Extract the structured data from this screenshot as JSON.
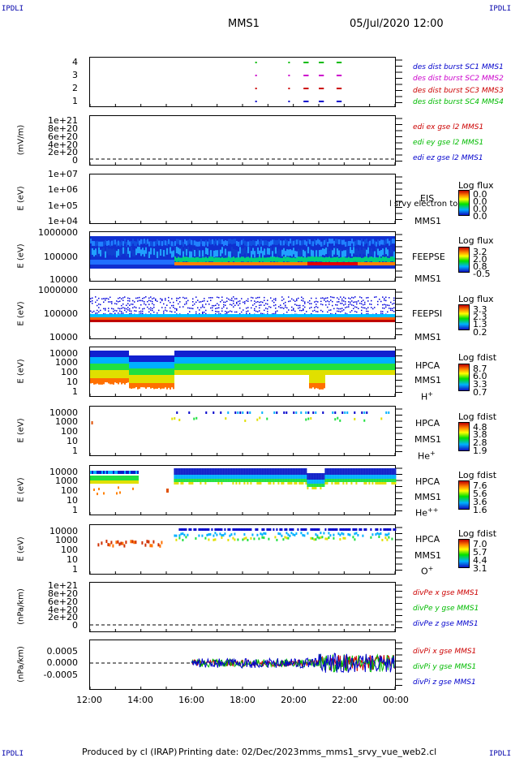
{
  "header": {
    "corner_label": "IPDLI",
    "spacecraft": "MMS1",
    "datetime": "05/Jul/2020 12:00"
  },
  "footer": {
    "produced_by": "Produced by cl (IRAP)",
    "printing_date": "Printing date: 02/Dec/2023",
    "filename": "mms_mms1_srvy_vue_web2.cl"
  },
  "x_axis": {
    "ticks": [
      "12:00",
      "14:00",
      "16:00",
      "18:00",
      "20:00",
      "22:00",
      "00:00"
    ]
  },
  "panels": {
    "burst": {
      "yticks": [
        "4",
        "3",
        "2",
        "1"
      ],
      "legend": [
        {
          "text": "des dist burst SC1 MMS1",
          "color": "#0000cc"
        },
        {
          "text": "des dist burst SC2 MMS2",
          "color": "#cc00cc"
        },
        {
          "text": "des dist burst SC3 MMS3",
          "color": "#cc0000"
        },
        {
          "text": "des dist burst SC4 MMS4",
          "color": "#00bb00"
        }
      ]
    },
    "efield": {
      "ylabel": "(mV/m)",
      "yticks": [
        "1e+21",
        "8e+20",
        "6e+20",
        "4e+20",
        "2e+20",
        "0"
      ],
      "legend": [
        {
          "text": "edi ex gse l2 MMS1",
          "color": "#cc0000"
        },
        {
          "text": "edi ey gse l2 MMS1",
          "color": "#00bb00"
        },
        {
          "text": "edi ez gse l2 MMS1",
          "color": "#0000cc"
        }
      ]
    },
    "eis": {
      "ylabel": "E (eV)",
      "yticks": [
        "1e+07",
        "1e+06",
        "1e+05",
        "1e+04"
      ],
      "instrument": "EIS",
      "spacecraft": "MMS1",
      "overlay": "l srvy electron to",
      "cbar_title": "Log flux",
      "cbar_ticks": [
        "0.0",
        "0.0",
        "0.0",
        "0.0"
      ]
    },
    "feepse": {
      "ylabel": "E (eV)",
      "yticks": [
        "1000000",
        "100000",
        "10000"
      ],
      "instrument": "FEEPSE",
      "spacecraft": "MMS1",
      "cbar_title": "Log flux",
      "cbar_ticks": [
        "3.2",
        "2.0",
        "0.8",
        "-0.5"
      ]
    },
    "feepsi": {
      "ylabel": "E (eV)",
      "yticks": [
        "1000000",
        "100000",
        "10000"
      ],
      "instrument": "FEEPSI",
      "spacecraft": "MMS1",
      "cbar_title": "Log flux",
      "cbar_ticks": [
        "3.3",
        "2.3",
        "1.3",
        "0.2"
      ]
    },
    "hpca_h": {
      "ylabel": "E (eV)",
      "yticks": [
        "10000",
        "1000",
        "100",
        "10",
        "1"
      ],
      "instrument": "HPCA",
      "spacecraft": "MMS1",
      "species": "H",
      "species_sup": "+",
      "cbar_title": "Log fdist",
      "cbar_ticks": [
        "8.7",
        "6.0",
        "3.3",
        "0.7"
      ]
    },
    "hpca_he": {
      "ylabel": "E (eV)",
      "yticks": [
        "10000",
        "1000",
        "100",
        "10",
        "1"
      ],
      "instrument": "HPCA",
      "spacecraft": "MMS1",
      "species": "He",
      "species_sup": "+",
      "cbar_title": "Log fdist",
      "cbar_ticks": [
        "4.8",
        "3.8",
        "2.8",
        "1.9"
      ]
    },
    "hpca_hepp": {
      "ylabel": "E (eV)",
      "yticks": [
        "10000",
        "1000",
        "100",
        "10",
        "1"
      ],
      "instrument": "HPCA",
      "spacecraft": "MMS1",
      "species": "He",
      "species_sup": "++",
      "cbar_title": "Log fdist",
      "cbar_ticks": [
        "7.6",
        "5.6",
        "3.6",
        "1.6"
      ]
    },
    "hpca_o": {
      "ylabel": "E (eV)",
      "yticks": [
        "10000",
        "1000",
        "100",
        "10",
        "1"
      ],
      "instrument": "HPCA",
      "spacecraft": "MMS1",
      "species": "O",
      "species_sup": "+",
      "cbar_title": "Log fdist",
      "cbar_ticks": [
        "7.0",
        "5.7",
        "4.4",
        "3.1"
      ]
    },
    "divpe": {
      "ylabel": "(nPa/km)",
      "yticks": [
        "1e+21",
        "8e+20",
        "6e+20",
        "4e+20",
        "2e+20",
        "0"
      ],
      "legend": [
        {
          "text": "divPe x gse MMS1",
          "color": "#cc0000"
        },
        {
          "text": "divPe y gse MMS1",
          "color": "#00bb00"
        },
        {
          "text": "divPe z gse MMS1",
          "color": "#0000cc"
        }
      ]
    },
    "divpi": {
      "ylabel": "(nPa/km)",
      "yticks": [
        "0.0005",
        "0.0000",
        "-0.0005"
      ],
      "legend": [
        {
          "text": "divPi x gse MMS1",
          "color": "#cc0000"
        },
        {
          "text": "divPi y gse MMS1",
          "color": "#00bb00"
        },
        {
          "text": "divPi z gse MMS1",
          "color": "#0000cc"
        }
      ]
    }
  },
  "chart_data": {
    "type": "heatmap",
    "x_range": [
      "12:00",
      "00:00"
    ],
    "burst_intervals_hours": {
      "MMS1": [
        [
          18.5,
          18.55
        ],
        [
          19.8,
          19.85
        ],
        [
          20.4,
          20.6
        ],
        [
          21.0,
          21.2
        ],
        [
          21.7,
          21.9
        ]
      ],
      "MMS2": [
        [
          18.5,
          18.55
        ],
        [
          19.8,
          19.85
        ],
        [
          20.4,
          20.6
        ],
        [
          21.0,
          21.2
        ],
        [
          21.7,
          21.9
        ]
      ],
      "MMS3": [
        [
          18.5,
          18.55
        ],
        [
          19.8,
          19.85
        ],
        [
          20.4,
          20.6
        ],
        [
          21.0,
          21.2
        ],
        [
          21.7,
          21.9
        ]
      ],
      "MMS4": [
        [
          18.5,
          18.55
        ],
        [
          19.8,
          19.85
        ],
        [
          20.4,
          20.6
        ],
        [
          21.0,
          21.2
        ],
        [
          21.7,
          21.9
        ]
      ]
    },
    "divPi_start_hour": 16.0
  }
}
